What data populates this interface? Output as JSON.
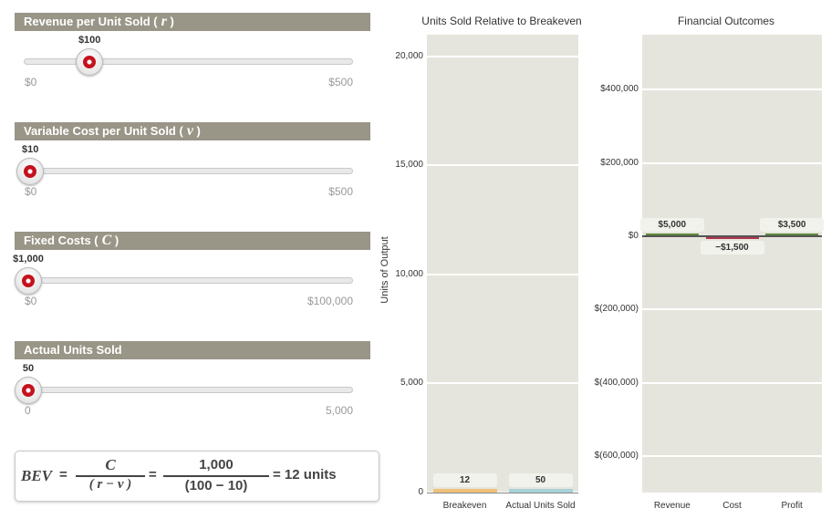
{
  "sliders": [
    {
      "title": "Revenue per Unit Sold (",
      "symbol": "r",
      "close": " )",
      "value_label": "$100",
      "value": 100,
      "min": 0,
      "max": 500,
      "min_label": "$0",
      "max_label": "$500"
    },
    {
      "title": "Variable Cost per Unit Sold (",
      "symbol": "v",
      "close": " )",
      "value_label": "$10",
      "value": 10,
      "min": 0,
      "max": 500,
      "min_label": "$0",
      "max_label": "$500"
    },
    {
      "title": "Fixed Costs (",
      "symbol": "C",
      "close": " )",
      "value_label": "$1,000",
      "value": 1000,
      "min": 0,
      "max": 100000,
      "min_label": "$0",
      "max_label": "$100,000"
    },
    {
      "title": "Actual Units Sold",
      "symbol": "",
      "close": "",
      "value_label": "50",
      "value": 50,
      "min": 0,
      "max": 5000,
      "min_label": "0",
      "max_label": "5,000"
    }
  ],
  "formula": {
    "lhs": "BEV",
    "eq1": "=",
    "num1": "C",
    "den1": "( r − v )",
    "eq2": "=",
    "num2": "1,000",
    "den2": "(100 − 10)",
    "result": "= 12 units"
  },
  "colors": {
    "slider_header": "#999587",
    "knob_accent": "#c4121c",
    "plot_bg": "#e6e5dd",
    "breakeven_bar": "#f0c27b",
    "actual_bar": "#a8d2d8",
    "revenue_bar": "#5b8a3c",
    "cost_bar": "#b0304a",
    "profit_bar": "#5b8a3c"
  },
  "chart_data": [
    {
      "type": "bar",
      "title": "Units Sold Relative to Breakeven",
      "ylabel": "Units of Output",
      "categories": [
        "Breakeven",
        "Actual Units Sold"
      ],
      "values": [
        12,
        50
      ],
      "value_labels": [
        "12",
        "50"
      ],
      "ylim": [
        0,
        21000
      ],
      "yticks": [
        0,
        5000,
        10000,
        15000,
        20000
      ],
      "ytick_labels": [
        "0",
        "5,000",
        "10,000",
        "15,000",
        "20,000"
      ],
      "grid": true
    },
    {
      "type": "bar",
      "title": "Financial Outcomes",
      "categories": [
        "Revenue",
        "Cost",
        "Profit"
      ],
      "values": [
        5000,
        -1500,
        3500
      ],
      "value_labels": [
        "$5,000",
        "−$1,500",
        "$3,500"
      ],
      "ylim": [
        -700000,
        550000
      ],
      "yticks": [
        -600000,
        -400000,
        -200000,
        0,
        200000,
        400000
      ],
      "ytick_labels": [
        "$(600,000)",
        "$(400,000)",
        "$(200,000)",
        "$0",
        "$200,000",
        "$400,000"
      ],
      "grid": true
    }
  ]
}
